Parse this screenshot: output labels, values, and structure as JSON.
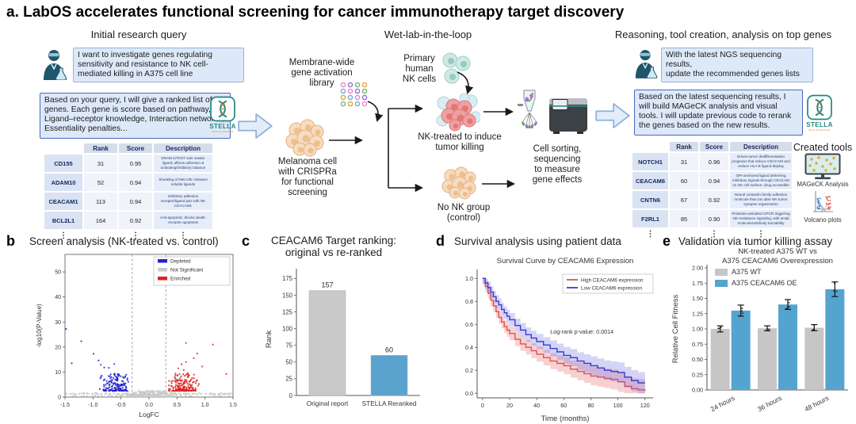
{
  "title": "a. LabOS accelerates functional screening for cancer immunotherapy target discovery",
  "panel_a": {
    "left": {
      "header": "Initial research query",
      "user_message": "I want to investigate genes regulating sensitivity and resistance to NK cell-mediated killing in A375 cell line",
      "stella_message": "Based on your query, I will give a ranked list of genes. Each gene is score based on pathway, Ligand–receptor knowledge, Interaction networks, Essentiality penalties...",
      "table": {
        "headers": [
          "",
          "Rank",
          "Score",
          "Description"
        ],
        "rows": [
          {
            "gene": "CD155",
            "rank": "31",
            "score": "0.95",
            "desc": "DNAM-1/TIGIT axis master ligand; affects adhesion & activating/inhibitory balance"
          },
          {
            "gene": "ADAM10",
            "rank": "52",
            "score": "0.94",
            "desc": "Shedding of MICA/B; releases soluble ligands"
          },
          {
            "gene": "CEACAM1",
            "rank": "113",
            "score": "0.94",
            "desc": "Inhibitory adhesion receptor/ligand pair with NK CEACAM1"
          },
          {
            "gene": "BCL2L1",
            "rank": "164",
            "score": "0.92",
            "desc": "Anti-apoptotic; blocks death-receptor apoptosis"
          }
        ],
        "ellipsis": "⋮"
      }
    },
    "middle": {
      "header": "Wet-lab-in-the-loop",
      "library_label": "Membrane-wide\ngene activation\nlibrary",
      "melanoma_label": "Melanoma cell\nwith CRISPRa\nfor functional\nscreening",
      "nk_label": "Primary\nhuman\nNK cells",
      "nk_treated_label": "NK-treated to induce\ntumor killing",
      "control_label": "No NK group\n(control)",
      "sorting_label": "Cell sorting,\nsequencing\nto measure\ngene effects"
    },
    "right": {
      "header": "Reasoning, tool creation, analysis on top genes",
      "user_message": "With the latest NGS sequencing results,\nupdate the recommended genes lists",
      "stella_message": "Based on the latest sequencing results, I will build MAGeCK analysis and visual tools. I will update previous code to rerank the genes based on the new results.",
      "table": {
        "headers": [
          "",
          "Rank",
          "Score",
          "Description"
        ],
        "rows": [
          {
            "gene": "NOTCH1",
            "rank": "31",
            "score": "0.96",
            "desc": "Drives tumor dedifferentiation programs that reduce CEACAM and reduce HLA-E ligand display"
          },
          {
            "gene": "CEACAM6",
            "rank": "60",
            "score": "0.94",
            "desc": "GPI-anchored ligand delivering inhibitory signals through CEACAM on NK cell surface; drug accessible"
          },
          {
            "gene": "CNTN6",
            "rank": "67",
            "score": "0.92",
            "desc": "Neural contactin family adhesion molecule that can alter NK-tumor synapse organization"
          },
          {
            "gene": "F2RL1",
            "rank": "85",
            "score": "0.90",
            "desc": "Protease-activated GPCR triggering NK-resistance signaling, with small molecule/antibody tractability"
          }
        ],
        "ellipsis": "⋮"
      },
      "created_tools": {
        "header": "Created tools",
        "tool1": "MAGeCK Analysis",
        "tool2": "Volcano plots"
      }
    },
    "stella_logo": {
      "name": "STELLA",
      "sub": "SELF-EVOLVING"
    }
  },
  "panels": {
    "b": {
      "letter": "b",
      "title": "Screen analysis (NK-treated vs. control)"
    },
    "c": {
      "letter": "c",
      "title": "CEACAM6 Target ranking:\noriginal vs re-ranked"
    },
    "d": {
      "letter": "d",
      "title": "Survival analysis using patient data"
    },
    "e": {
      "letter": "e",
      "title": "Validation via tumor killing assay"
    }
  },
  "chart_data": [
    {
      "type": "scatter",
      "variant": "volcano",
      "title": "Screen analysis (NK-treated vs. control)",
      "xlabel": "LogFC",
      "ylabel": "-log10(P-Value)",
      "xlim": [
        -1.5,
        1.5
      ],
      "ylim": [
        0,
        57
      ],
      "xticks": [
        -1.5,
        -1.0,
        -0.5,
        0.0,
        0.5,
        1.0,
        1.5
      ],
      "yticks": [
        0,
        10,
        20,
        30,
        40,
        50
      ],
      "legend": [
        {
          "label": "Depleted",
          "color": "#2222cc"
        },
        {
          "label": "Not Significant",
          "color": "#c9c9c9"
        },
        {
          "label": "Enriched",
          "color": "#dd2222"
        }
      ],
      "thresholds": {
        "vlines": [
          -0.3,
          0.3
        ],
        "hline": 1.3
      },
      "clusters": [
        {
          "name": "not-significant",
          "color": "#c9c9c9",
          "n_dense": 430,
          "n_sparse": 90
        },
        {
          "name": "depleted",
          "color": "#2222cc",
          "n": 170,
          "x_range": [
            -0.9,
            -0.32
          ],
          "y_range": [
            2.5,
            11
          ]
        },
        {
          "name": "enriched",
          "color": "#dd2222",
          "n": 200,
          "x_range": [
            0.32,
            0.9
          ],
          "y_range": [
            2.5,
            12
          ]
        }
      ],
      "outliers": {
        "depleted": [
          [
            -1.48,
            27.2
          ],
          [
            -1.21,
            22.3
          ],
          [
            -1.38,
            13.5
          ],
          [
            -0.99,
            17.3
          ],
          [
            -0.9,
            14.6
          ],
          [
            -0.86,
            12.9
          ],
          [
            -0.8,
            11.8
          ],
          [
            -0.62,
            13.2
          ]
        ],
        "enriched": [
          [
            0.66,
            21.6
          ],
          [
            1.14,
            21.0
          ],
          [
            1.38,
            9.2
          ],
          [
            0.86,
            17.4
          ],
          [
            0.8,
            15.6
          ],
          [
            0.66,
            14.0
          ],
          [
            0.58,
            13.1
          ],
          [
            0.95,
            12.2
          ],
          [
            0.52,
            11.5
          ],
          [
            0.62,
            10.8
          ]
        ]
      }
    },
    {
      "type": "bar",
      "title": "CEACAM6 Target ranking: original vs re-ranked",
      "categories": [
        "Original report",
        "STELLA Reranked"
      ],
      "values": [
        157,
        60
      ],
      "value_labels": [
        "157",
        "60"
      ],
      "bar_colors": [
        "#c9c9c9",
        "#5ba3cf"
      ],
      "xlabel": "",
      "ylabel": "Rank",
      "ylim": [
        0,
        185
      ],
      "yticks": [
        0,
        25,
        50,
        75,
        100,
        125,
        150,
        175
      ]
    },
    {
      "type": "line",
      "variant": "kaplan-meier",
      "title": "Survival Curve by CEACAM6 Expression",
      "xlabel": "Time (months)",
      "ylabel": "",
      "xlim": [
        0,
        120
      ],
      "ylim": [
        0.0,
        1.0
      ],
      "xticks": [
        0,
        20,
        40,
        60,
        80,
        100,
        120
      ],
      "yticks": [
        0.0,
        0.2,
        0.4,
        0.6,
        0.8,
        1.0
      ],
      "annotation": "Log-rank p-value: 0.0014",
      "legend_position": "top-right",
      "t": [
        0,
        2,
        4,
        6,
        8,
        10,
        12,
        14,
        16,
        18,
        20,
        24,
        28,
        32,
        36,
        40,
        45,
        50,
        55,
        60,
        65,
        70,
        75,
        80,
        85,
        90,
        95,
        100,
        105,
        110,
        115,
        120
      ],
      "series": [
        {
          "name": "High CEACAM6 expression",
          "color": "#e05252",
          "band_color": "rgba(228,90,90,0.28)",
          "s": [
            1.0,
            0.93,
            0.87,
            0.81,
            0.76,
            0.71,
            0.66,
            0.62,
            0.58,
            0.55,
            0.52,
            0.47,
            0.43,
            0.4,
            0.37,
            0.34,
            0.31,
            0.28,
            0.26,
            0.24,
            0.21,
            0.19,
            0.17,
            0.15,
            0.14,
            0.13,
            0.12,
            0.1,
            0.06,
            0.04,
            0.03,
            0.02
          ]
        },
        {
          "name": "Low CEACAM6 expression",
          "color": "#3a3ad1",
          "band_color": "rgba(100,100,225,0.28)",
          "s": [
            1.0,
            0.96,
            0.92,
            0.88,
            0.84,
            0.8,
            0.77,
            0.73,
            0.7,
            0.67,
            0.64,
            0.59,
            0.55,
            0.51,
            0.48,
            0.45,
            0.42,
            0.39,
            0.36,
            0.33,
            0.31,
            0.28,
            0.26,
            0.24,
            0.22,
            0.2,
            0.19,
            0.18,
            0.14,
            0.11,
            0.09,
            0.09
          ]
        }
      ]
    },
    {
      "type": "bar",
      "variant": "grouped",
      "title": "NK-treated A375 WT vs\nA375 CEACAM6 Overexpression",
      "categories": [
        "24 hours",
        "36 hours",
        "48 hours"
      ],
      "series": [
        {
          "name": "A375 WT",
          "color": "#c6c6c6",
          "values": [
            1.0,
            1.01,
            1.02
          ],
          "errors": [
            0.05,
            0.04,
            0.05
          ]
        },
        {
          "name": "A375 CEACAM6 OE",
          "color": "#55a4cf",
          "values": [
            1.3,
            1.4,
            1.65
          ],
          "errors": [
            0.09,
            0.08,
            0.12
          ]
        }
      ],
      "xlabel": "",
      "ylabel": "Relative Cell Fitness",
      "ylim": [
        0.0,
        2.0
      ],
      "yticks": [
        0.0,
        0.25,
        0.5,
        0.75,
        1.0,
        1.25,
        1.5,
        1.75,
        2.0
      ],
      "legend_position": "top-left"
    }
  ]
}
